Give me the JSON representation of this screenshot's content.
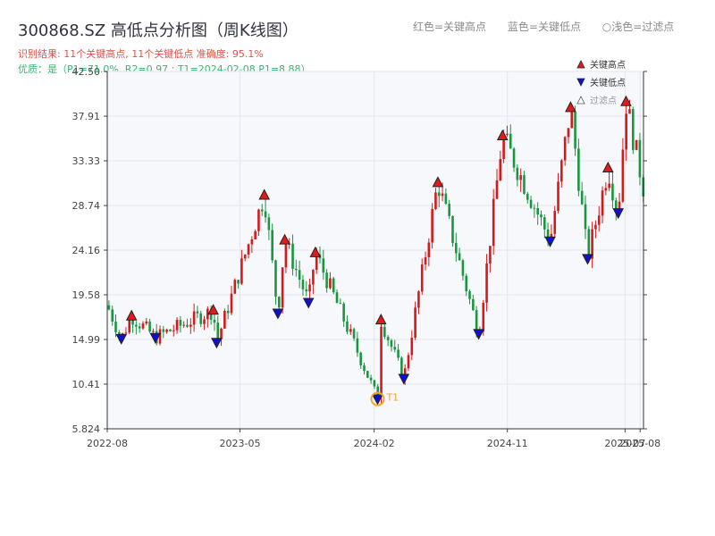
{
  "header": {
    "title": "300868.SZ 高低点分析图（周K线图）",
    "result_line": "识别结果: 11个关键高点, 11个关键低点   准确度: 95.1%",
    "quality_line": "优质：是（P1=71.0%, R2=0.97 ; T1=2024-02-08 P1=8.88）"
  },
  "top_legend": {
    "red": "红色=关键高点",
    "blue": "蓝色=关键低点",
    "light": "○浅色=过滤点"
  },
  "chart_data": {
    "type": "candlestick",
    "title": "300868.SZ 高低点分析图（周K线图）",
    "y_ticks": [
      "42.50",
      "37.91",
      "33.33",
      "28.74",
      "24.16",
      "19.58",
      "14.99",
      "10.41",
      "5.824"
    ],
    "ylim": [
      5.824,
      42.5
    ],
    "x_ticks": [
      "2022-08",
      "2023-05",
      "2024-02",
      "2024-11",
      "2025-07",
      "2025-08"
    ],
    "x_tick_dates": [
      "2022-08-01",
      "2023-05-01",
      "2024-02-01",
      "2024-11-01",
      "2025-07-01",
      "2025-08-01"
    ],
    "xlim": [
      "2022-08-01",
      "2025-08-08"
    ],
    "legend": {
      "position": "top-right",
      "items": [
        "关键高点",
        "关键低点",
        "过滤点"
      ]
    },
    "colors": {
      "up": "#d7191c",
      "down": "#1a9641",
      "high_marker": "#e31a1c",
      "low_marker": "#1010d0",
      "t1": "#f5a623"
    },
    "key_highs": [
      {
        "date": "2022-09-20",
        "value": 17.4
      },
      {
        "date": "2023-03-07",
        "value": 18.0
      },
      {
        "date": "2023-06-20",
        "value": 29.8
      },
      {
        "date": "2023-08-01",
        "value": 25.2
      },
      {
        "date": "2023-10-03",
        "value": 23.9
      },
      {
        "date": "2024-02-15",
        "value": 17.0
      },
      {
        "date": "2024-06-11",
        "value": 31.1
      },
      {
        "date": "2024-10-22",
        "value": 35.9
      },
      {
        "date": "2025-03-11",
        "value": 38.8
      },
      {
        "date": "2025-05-27",
        "value": 32.6
      },
      {
        "date": "2025-07-03",
        "value": 39.4
      }
    ],
    "key_lows": [
      {
        "date": "2022-08-30",
        "value": 15.1
      },
      {
        "date": "2022-11-08",
        "value": 15.2
      },
      {
        "date": "2023-03-14",
        "value": 14.7
      },
      {
        "date": "2023-07-18",
        "value": 17.7
      },
      {
        "date": "2023-09-19",
        "value": 18.8
      },
      {
        "date": "2024-02-08",
        "value": 8.9
      },
      {
        "date": "2024-04-02",
        "value": 11.0
      },
      {
        "date": "2024-09-03",
        "value": 15.6
      },
      {
        "date": "2025-01-28",
        "value": 25.1
      },
      {
        "date": "2025-04-15",
        "value": 23.3
      },
      {
        "date": "2025-06-17",
        "value": 28.0
      }
    ],
    "t1": {
      "label": "T1",
      "date": "2024-02-08",
      "value": 8.88
    }
  }
}
